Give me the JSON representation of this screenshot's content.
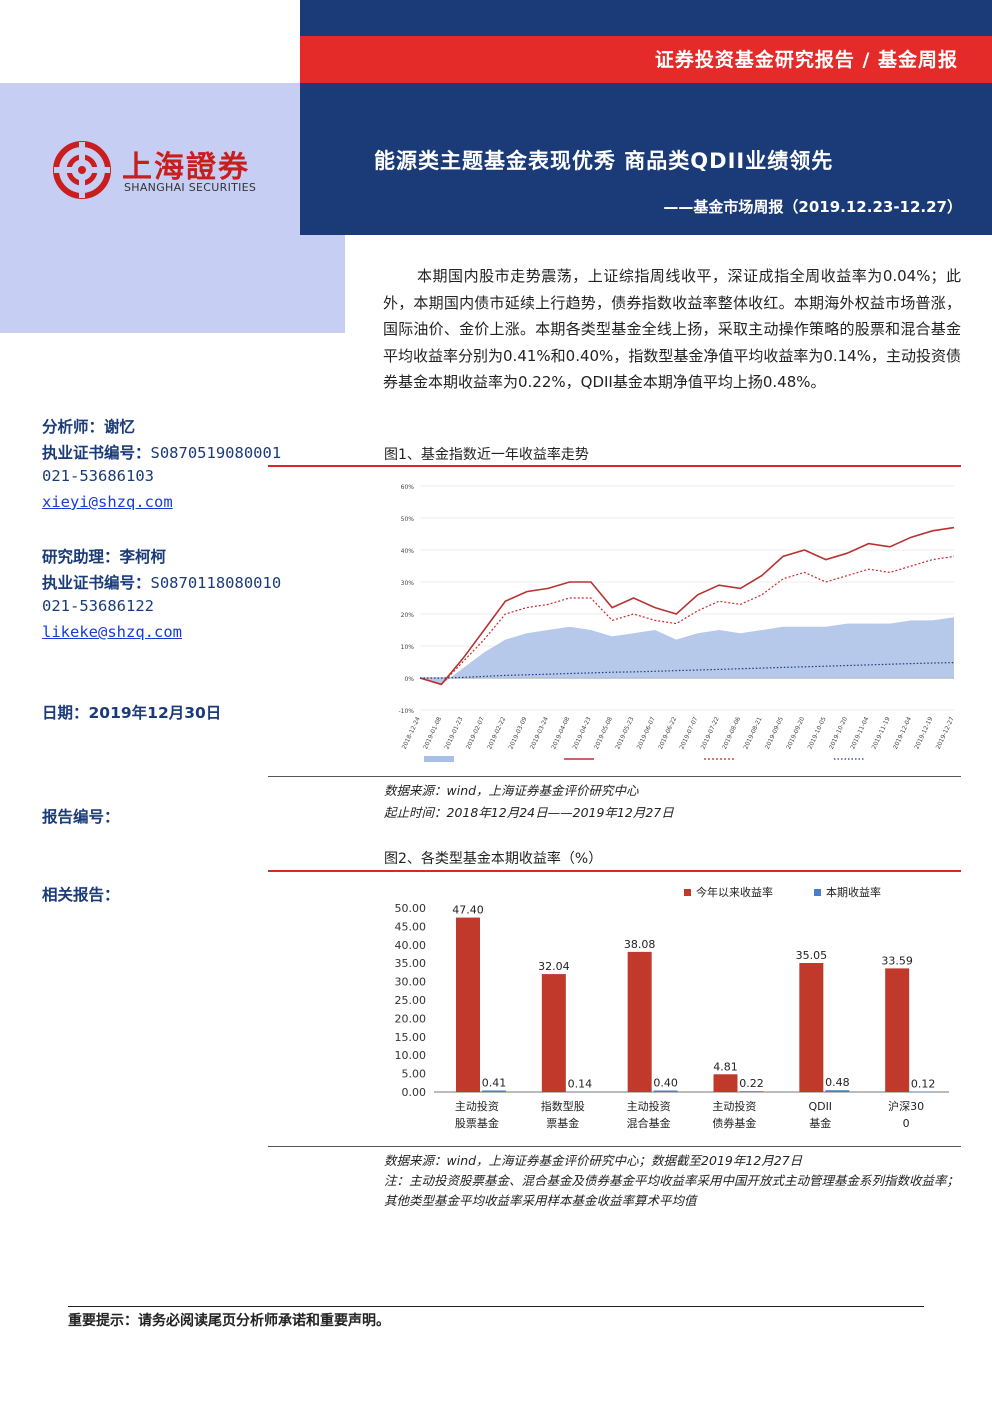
{
  "header": {
    "series_title": "证券投资基金研究报告 / 基金周报",
    "main_title": "能源类主题基金表现优秀 商品类QDII业绩领先",
    "sub_title": "——基金市场周报（2019.12.23-12.27）",
    "logo_cn": "上海證券",
    "logo_en": "SHANGHAI SECURITIES"
  },
  "summary": "本期国内股市走势震荡，上证综指周线收平，深证成指全周收益率为0.04%；此外，本期国内债市延续上行趋势，债券指数收益率整体收红。本期海外权益市场普涨，国际油价、金价上涨。本期各类型基金全线上扬，采取主动操作策略的股票和混合基金平均收益率分别为0.41%和0.40%，指数型基金净值平均收益率为0.14%，主动投资债券基金本期收益率为0.22%，QDII基金本期净值平均上扬0.48%。",
  "sidebar": {
    "analyst_label": "分析师：",
    "analyst_name": "谢忆",
    "cert_label": "执业证书编号：",
    "analyst_cert": "S0870519080001",
    "analyst_phone": "021-53686103",
    "analyst_email": "xieyi@shzq.com",
    "assistant_label": "研究助理：",
    "assistant_name": "李柯柯",
    "assistant_cert": "S0870118080010",
    "assistant_phone": "021-53686122",
    "assistant_email": "likeke@shzq.com",
    "date_label": "日期：",
    "date_value": "2019年12月30日",
    "report_no_label": "报告编号：",
    "related_label": "相关报告："
  },
  "figure1": {
    "caption": "图1、基金指数近一年收益率走势",
    "source": "数据来源：wind，上海证券基金评价研究中心",
    "period": "起止时间：2018年12月24日——2019年12月27日"
  },
  "figure2": {
    "caption": "图2、各类型基金本期收益率（%）",
    "source": "数据来源：wind，上海证券基金评价研究中心；数据截至2019年12月27日",
    "note": "注：主动投资股票基金、混合基金及债券基金平均收益率采用中国开放式主动管理基金系列指数收益率；其他类型基金平均收益率采用样本基金收益率算术平均值"
  },
  "footer": "重要提示：请务必阅读尾页分析师承诺和重要声明。",
  "colors": {
    "navy": "#1a3b78",
    "red": "#e52a2a",
    "light_blue": "#c6cff3",
    "bar_red": "#c0392b",
    "bar_blue": "#4a7cc9"
  },
  "chart_data": [
    {
      "type": "line",
      "ylim": [
        -0.1,
        0.6
      ],
      "yticks": [
        "-10%",
        "0%",
        "10%",
        "20%",
        "30%",
        "40%",
        "50%",
        "60%"
      ],
      "x": [
        "2018-12-24",
        "2019-01-08",
        "2019-01-23",
        "2019-02-07",
        "2019-02-22",
        "2019-03-09",
        "2019-03-24",
        "2019-04-08",
        "2019-04-23",
        "2019-05-08",
        "2019-05-23",
        "2019-06-07",
        "2019-06-22",
        "2019-07-07",
        "2019-07-22",
        "2019-08-06",
        "2019-08-21",
        "2019-09-05",
        "2019-09-20",
        "2019-10-05",
        "2019-10-20",
        "2019-11-04",
        "2019-11-19",
        "2019-12-04",
        "2019-12-19",
        "2019-12-27"
      ],
      "series": [
        {
          "values": [
            0.0,
            -0.02,
            0.03,
            0.08,
            0.12,
            0.14,
            0.15,
            0.16,
            0.15,
            0.13,
            0.14,
            0.15,
            0.12,
            0.14,
            0.15,
            0.14,
            0.15,
            0.16,
            0.16,
            0.16,
            0.17,
            0.17,
            0.17,
            0.18,
            0.18,
            0.19
          ]
        },
        {
          "values": [
            0.0,
            -0.02,
            0.06,
            0.15,
            0.24,
            0.27,
            0.28,
            0.3,
            0.3,
            0.22,
            0.25,
            0.22,
            0.2,
            0.26,
            0.29,
            0.28,
            0.32,
            0.38,
            0.4,
            0.37,
            0.39,
            0.42,
            0.41,
            0.44,
            0.46,
            0.47
          ]
        },
        {
          "values": [
            0.0,
            -0.02,
            0.05,
            0.12,
            0.2,
            0.22,
            0.23,
            0.25,
            0.25,
            0.18,
            0.2,
            0.18,
            0.17,
            0.21,
            0.24,
            0.23,
            0.26,
            0.31,
            0.33,
            0.3,
            0.32,
            0.34,
            0.33,
            0.35,
            0.37,
            0.38
          ]
        },
        {
          "values": [
            0.0,
            0.0,
            0.002,
            0.005,
            0.008,
            0.01,
            0.012,
            0.014,
            0.016,
            0.018,
            0.019,
            0.021,
            0.023,
            0.025,
            0.027,
            0.029,
            0.031,
            0.033,
            0.035,
            0.037,
            0.039,
            0.041,
            0.043,
            0.045,
            0.047,
            0.048
          ]
        }
      ]
    },
    {
      "type": "bar",
      "categories": [
        "主动投资股票基金",
        "指数型股票基金",
        "主动投资混合基金",
        "主动投资债券基金",
        "QDII基金",
        "沪深300"
      ],
      "series": [
        {
          "name": "今年以来收益率",
          "values": [
            47.4,
            32.04,
            38.08,
            4.81,
            35.05,
            33.59
          ]
        },
        {
          "name": "本期收益率",
          "values": [
            0.41,
            0.14,
            0.4,
            0.22,
            0.48,
            0.12
          ]
        }
      ],
      "ylim": [
        0,
        50
      ],
      "yticks": [
        "0.00",
        "5.00",
        "10.00",
        "15.00",
        "20.00",
        "25.00",
        "30.00",
        "35.00",
        "40.00",
        "45.00",
        "50.00"
      ],
      "legend": "top-right"
    }
  ]
}
